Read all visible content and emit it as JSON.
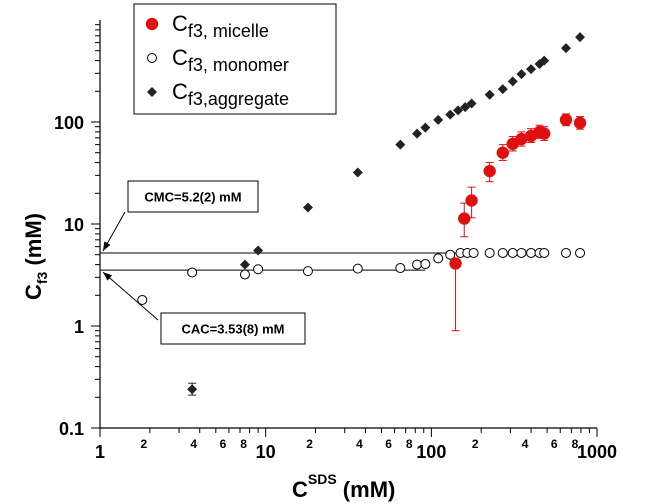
{
  "chart_data": {
    "type": "scatter",
    "title": "",
    "xlabel": {
      "main": "C",
      "sup": "SDS",
      "tail": " (mM)"
    },
    "ylabel": {
      "main": "C",
      "sub": "f3",
      "tail": " (mM)"
    },
    "xscale": "log",
    "yscale": "log",
    "xlim": [
      1,
      1000
    ],
    "ylim": [
      0.1,
      1000
    ],
    "x_ticks": [
      1,
      10,
      100,
      1000
    ],
    "x_tick_labels": [
      "1",
      "10",
      "100",
      "1000"
    ],
    "x_minor_labels": [
      {
        "value": 2,
        "label": "2"
      },
      {
        "value": 4,
        "label": "4"
      },
      {
        "value": 6,
        "label": "6"
      },
      {
        "value": 8,
        "label": "8"
      },
      {
        "value": 20,
        "label": "2"
      },
      {
        "value": 40,
        "label": "4"
      },
      {
        "value": 60,
        "label": "6"
      },
      {
        "value": 80,
        "label": "8"
      },
      {
        "value": 200,
        "label": "2"
      },
      {
        "value": 400,
        "label": "4"
      },
      {
        "value": 600,
        "label": "6"
      },
      {
        "value": 800,
        "label": "8"
      }
    ],
    "y_ticks": [
      0.1,
      1,
      10,
      100
    ],
    "y_tick_labels": [
      "0.1",
      "1",
      "10",
      "100"
    ],
    "grid": false,
    "legend_position": "top-center",
    "legend": [
      {
        "main": "C",
        "sub": "f3, micelle",
        "marker": "filled-circle",
        "color": "#e01010"
      },
      {
        "main": "C",
        "sub": "f3, monomer",
        "marker": "open-circle",
        "color": "#000000"
      },
      {
        "main": "C",
        "sub": "f3,aggregate",
        "marker": "diamond",
        "color": "#222222"
      }
    ],
    "series": [
      {
        "name": "Cf3, micelle",
        "marker": "filled-circle",
        "color": "#e01010",
        "points": [
          {
            "x": 140,
            "y": 4.1,
            "err_low": 0.9,
            "err_high": 4.5
          },
          {
            "x": 158,
            "y": 11.3,
            "err_low": 7.5,
            "err_high": 16
          },
          {
            "x": 175,
            "y": 17,
            "err_low": 11.5,
            "err_high": 23
          },
          {
            "x": 225,
            "y": 33,
            "err_low": 26,
            "err_high": 40
          },
          {
            "x": 270,
            "y": 50,
            "err_low": 42,
            "err_high": 60
          },
          {
            "x": 310,
            "y": 61,
            "err_low": 52,
            "err_high": 72
          },
          {
            "x": 350,
            "y": 68,
            "err_low": 58,
            "err_high": 80
          },
          {
            "x": 400,
            "y": 73,
            "err_low": 63,
            "err_high": 86
          },
          {
            "x": 450,
            "y": 80,
            "err_low": 69,
            "err_high": 93
          },
          {
            "x": 480,
            "y": 77,
            "err_low": 66,
            "err_high": 90
          },
          {
            "x": 650,
            "y": 105,
            "err_low": 92,
            "err_high": 120
          },
          {
            "x": 790,
            "y": 98,
            "err_low": 85,
            "err_high": 113
          }
        ]
      },
      {
        "name": "Cf3, monomer",
        "marker": "open-circle",
        "color": "#000000",
        "points": [
          {
            "x": 1.8,
            "y": 1.8
          },
          {
            "x": 3.6,
            "y": 3.35
          },
          {
            "x": 7.5,
            "y": 3.2
          },
          {
            "x": 9,
            "y": 3.6
          },
          {
            "x": 18,
            "y": 3.45
          },
          {
            "x": 36,
            "y": 3.65
          },
          {
            "x": 65,
            "y": 3.7
          },
          {
            "x": 82,
            "y": 4.0
          },
          {
            "x": 92,
            "y": 4.05
          },
          {
            "x": 110,
            "y": 4.6
          },
          {
            "x": 130,
            "y": 5.0
          },
          {
            "x": 150,
            "y": 5.2
          },
          {
            "x": 165,
            "y": 5.2
          },
          {
            "x": 180,
            "y": 5.2
          },
          {
            "x": 225,
            "y": 5.2
          },
          {
            "x": 270,
            "y": 5.2
          },
          {
            "x": 310,
            "y": 5.2
          },
          {
            "x": 350,
            "y": 5.2
          },
          {
            "x": 400,
            "y": 5.2
          },
          {
            "x": 450,
            "y": 5.2
          },
          {
            "x": 480,
            "y": 5.2
          },
          {
            "x": 650,
            "y": 5.2
          },
          {
            "x": 790,
            "y": 5.2
          }
        ]
      },
      {
        "name": "Cf3,aggregate",
        "marker": "diamond",
        "color": "#222222",
        "points": [
          {
            "x": 3.6,
            "y": 0.24,
            "err_low": 0.21,
            "err_high": 0.275
          },
          {
            "x": 7.5,
            "y": 4.0
          },
          {
            "x": 9,
            "y": 5.5
          },
          {
            "x": 18,
            "y": 14.5
          },
          {
            "x": 36,
            "y": 32
          },
          {
            "x": 65,
            "y": 60
          },
          {
            "x": 82,
            "y": 77
          },
          {
            "x": 92,
            "y": 88
          },
          {
            "x": 110,
            "y": 105
          },
          {
            "x": 130,
            "y": 118
          },
          {
            "x": 145,
            "y": 130
          },
          {
            "x": 160,
            "y": 140
          },
          {
            "x": 175,
            "y": 152
          },
          {
            "x": 225,
            "y": 185
          },
          {
            "x": 270,
            "y": 210
          },
          {
            "x": 310,
            "y": 250
          },
          {
            "x": 350,
            "y": 295
          },
          {
            "x": 400,
            "y": 330
          },
          {
            "x": 450,
            "y": 370
          },
          {
            "x": 480,
            "y": 400
          },
          {
            "x": 650,
            "y": 530
          },
          {
            "x": 790,
            "y": 680
          }
        ]
      }
    ],
    "reference_lines": [
      {
        "name": "cmc-line",
        "y": 5.2,
        "x_from": 1,
        "x_to": 140
      },
      {
        "name": "cac-line",
        "y": 3.53,
        "x_from": 1,
        "x_to": 92
      }
    ],
    "annotations": [
      {
        "name": "cmc-annotation",
        "text": "CMC=5.2(2) mM",
        "arrow_to": {
          "x": 1,
          "y": 5.2
        },
        "box_position": "left-middle-upper"
      },
      {
        "name": "cac-annotation",
        "text": "CAC=3.53(8) mM",
        "arrow_to": {
          "x": 1,
          "y": 3.53
        },
        "box_position": "left-middle-lower"
      }
    ]
  }
}
